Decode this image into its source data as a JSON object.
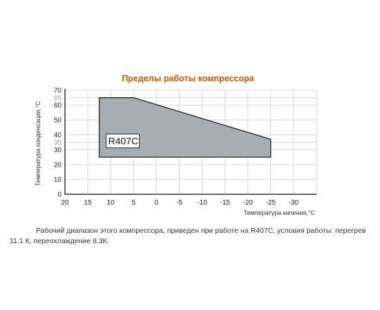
{
  "chart_data": {
    "type": "area",
    "title": "Пределы работы компрессора",
    "xlabel": "Температура кипения,°C",
    "ylabel": "Температура конденсации,°C",
    "xlim": [
      20,
      -35
    ],
    "ylim": [
      0,
      70
    ],
    "x_ticks": [
      20,
      15,
      10,
      5,
      0,
      -5,
      -10,
      -15,
      -20,
      -25,
      -30
    ],
    "x_tick_labels": [
      "20",
      "15",
      "10",
      "5",
      "0",
      "-5",
      "-10",
      "-15",
      "-20",
      "-25",
      "-30"
    ],
    "y_ticks": [
      0,
      10,
      20,
      30,
      35,
      40,
      50,
      60,
      65,
      70
    ],
    "y_tick_labels": [
      "0",
      "10",
      "20",
      "30",
      "35",
      "40",
      "50",
      "60",
      "65",
      "70"
    ],
    "highlighted_y_ticks": [
      35,
      65
    ],
    "grid": true,
    "series": [
      {
        "name": "R407C",
        "color": "#a8adb3",
        "points": [
          [
            12.5,
            25
          ],
          [
            12.5,
            65
          ],
          [
            5,
            65
          ],
          [
            -25,
            37
          ],
          [
            -25,
            25
          ]
        ]
      }
    ],
    "annotation": "R407C",
    "colors": {
      "title": "#d35400",
      "area_fill": "#a8adb3",
      "area_stroke": "#222222",
      "grid": "#d4d4d4",
      "axis": "#333333",
      "highlight_tick": "#a0a0a0"
    }
  },
  "caption": "Рабочий диапазон этого компрессора, приведен при работе на R407C, условия работы: перегрев 11.1 К, переохлаждение 8.3К."
}
